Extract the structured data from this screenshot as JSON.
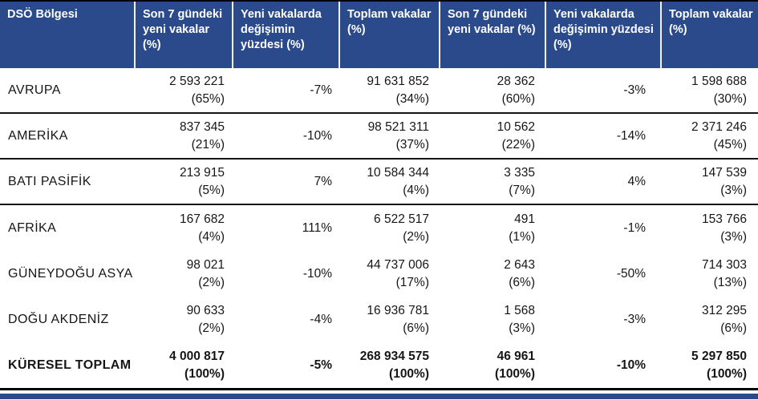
{
  "colors": {
    "header_bg": "#2a4a8c",
    "header_text": "#ffffff",
    "body_text": "#161616",
    "rule_black": "#000000"
  },
  "chart_data": {
    "type": "table",
    "columns": [
      "DSÖ Bölgesi",
      "Son 7 gündeki yeni vakalar (%)",
      "Yeni vakalarda değişimin yüzdesi (%)",
      "Toplam vakalar (%)",
      "Son 7 gündeki yeni vakalar (%)",
      "Yeni vakalarda değişimin yüzdesi (%)",
      "Toplam vakalar (%)"
    ],
    "rows": [
      {
        "region": "AVRUPA",
        "cells": [
          {
            "v": "2 593 221",
            "p": "(65%)"
          },
          {
            "v": "-7%"
          },
          {
            "v": "91 631 852",
            "p": "(34%)"
          },
          {
            "v": "28 362",
            "p": "(60%)"
          },
          {
            "v": "-3%"
          },
          {
            "v": "1 598 688",
            "p": "(30%)"
          }
        ]
      },
      {
        "region": "AMERİKA",
        "cells": [
          {
            "v": "837 345",
            "p": "(21%)"
          },
          {
            "v": "-10%"
          },
          {
            "v": "98 521 311",
            "p": "(37%)"
          },
          {
            "v": "10 562",
            "p": "(22%)"
          },
          {
            "v": "-14%"
          },
          {
            "v": "2 371 246",
            "p": "(45%)"
          }
        ]
      },
      {
        "region": "BATI PASİFİK",
        "cells": [
          {
            "v": "213 915",
            "p": "(5%)"
          },
          {
            "v": "7%"
          },
          {
            "v": "10 584 344",
            "p": "(4%)"
          },
          {
            "v": "3 335",
            "p": "(7%)"
          },
          {
            "v": "4%"
          },
          {
            "v": "147 539",
            "p": "(3%)"
          }
        ]
      },
      {
        "region": "AFRİKA",
        "cells": [
          {
            "v": "167 682",
            "p": "(4%)"
          },
          {
            "v": "111%"
          },
          {
            "v": "6 522 517",
            "p": "(2%)"
          },
          {
            "v": "491",
            "p": "(1%)"
          },
          {
            "v": "-1%"
          },
          {
            "v": "153 766",
            "p": "(3%)"
          }
        ]
      },
      {
        "region": "GÜNEYDOĞU ASYA",
        "cells": [
          {
            "v": "98 021",
            "p": "(2%)"
          },
          {
            "v": "-10%"
          },
          {
            "v": "44 737 006",
            "p": "(17%)"
          },
          {
            "v": "2 643",
            "p": "(6%)"
          },
          {
            "v": "-50%"
          },
          {
            "v": "714 303",
            "p": "(13%)"
          }
        ]
      },
      {
        "region": "DOĞU AKDENİZ",
        "cells": [
          {
            "v": "90 633",
            "p": "(2%)"
          },
          {
            "v": "-4%"
          },
          {
            "v": "16 936 781",
            "p": "(6%)"
          },
          {
            "v": "1 568",
            "p": "(3%)"
          },
          {
            "v": "-3%"
          },
          {
            "v": "312 295",
            "p": "(6%)"
          }
        ]
      },
      {
        "region": "KÜRESEL TOPLAM",
        "cells": [
          {
            "v": "4 000 817",
            "p": "(100%)"
          },
          {
            "v": "-5%"
          },
          {
            "v": "268 934 575",
            "p": "(100%)"
          },
          {
            "v": "46 961",
            "p": "(100%)"
          },
          {
            "v": "-10%"
          },
          {
            "v": "5 297 850",
            "p": "(100%)"
          }
        ]
      }
    ]
  }
}
